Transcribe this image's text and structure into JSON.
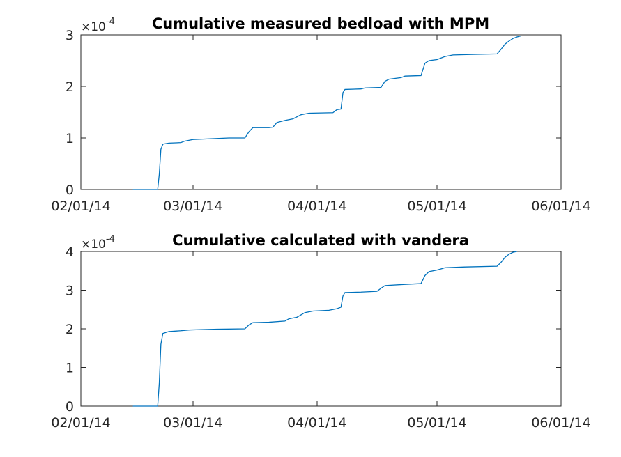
{
  "chart_data": [
    {
      "type": "line",
      "title": "Cumulative measured bedload with MPM",
      "exponent_label": "×10",
      "exponent_power": "-4",
      "xlim": [
        "02/01/14",
        "06/01/14"
      ],
      "ylim": [
        0,
        3
      ],
      "x_ticks": [
        "02/01/14",
        "03/01/14",
        "04/01/14",
        "05/01/14",
        "06/01/14"
      ],
      "y_ticks": [
        "0",
        "1",
        "2",
        "3"
      ],
      "grid": false,
      "series": [
        {
          "color": "#0072BD",
          "points": [
            [
              "2014-02-14",
              0
            ],
            [
              "2014-02-14",
              0
            ],
            [
              "2014-02-20.2",
              0
            ],
            [
              "2014-02-20.6",
              0.3
            ],
            [
              "2014-02-21.0",
              0.78
            ],
            [
              "2014-02-21.5",
              0.88
            ],
            [
              "2014-02-23",
              0.9
            ],
            [
              "2014-02-26",
              0.91
            ],
            [
              "2014-02-27",
              0.94
            ],
            [
              "2014-03-01",
              0.97
            ],
            [
              "2014-03-04",
              0.98
            ],
            [
              "2014-03-07",
              0.99
            ],
            [
              "2014-03-10",
              1.0
            ],
            [
              "2014-03-14",
              1.0
            ],
            [
              "2014-03-15",
              1.12
            ],
            [
              "2014-03-16",
              1.2
            ],
            [
              "2014-03-20",
              1.2
            ],
            [
              "2014-03-21",
              1.21
            ],
            [
              "2014-03-22",
              1.3
            ],
            [
              "2014-03-24",
              1.34
            ],
            [
              "2014-03-26",
              1.37
            ],
            [
              "2014-03-28",
              1.45
            ],
            [
              "2014-03-30",
              1.48
            ],
            [
              "2014-04-05",
              1.49
            ],
            [
              "2014-04-06",
              1.55
            ],
            [
              "2014-04-07",
              1.56
            ],
            [
              "2014-04-07.5",
              1.88
            ],
            [
              "2014-04-08",
              1.94
            ],
            [
              "2014-04-12",
              1.95
            ],
            [
              "2014-04-13",
              1.97
            ],
            [
              "2014-04-17",
              1.98
            ],
            [
              "2014-04-18",
              2.1
            ],
            [
              "2014-04-19",
              2.14
            ],
            [
              "2014-04-22",
              2.17
            ],
            [
              "2014-04-23",
              2.2
            ],
            [
              "2014-04-27",
              2.21
            ],
            [
              "2014-04-28",
              2.45
            ],
            [
              "2014-04-29",
              2.5
            ],
            [
              "2014-05-01",
              2.52
            ],
            [
              "2014-05-03",
              2.58
            ],
            [
              "2014-05-05",
              2.61
            ],
            [
              "2014-05-10",
              2.62
            ],
            [
              "2014-05-16",
              2.63
            ],
            [
              "2014-05-17",
              2.72
            ],
            [
              "2014-05-18",
              2.82
            ],
            [
              "2014-05-19",
              2.88
            ],
            [
              "2014-05-20",
              2.93
            ],
            [
              "2014-05-21",
              2.96
            ],
            [
              "2014-05-22",
              2.98
            ]
          ]
        }
      ]
    },
    {
      "type": "line",
      "title": "Cumulative calculated with vandera",
      "exponent_label": "×10",
      "exponent_power": "-4",
      "xlim": [
        "02/01/14",
        "06/01/14"
      ],
      "ylim": [
        0,
        4
      ],
      "x_ticks": [
        "02/01/14",
        "03/01/14",
        "04/01/14",
        "05/01/14",
        "06/01/14"
      ],
      "y_ticks": [
        "0",
        "1",
        "2",
        "3",
        "4"
      ],
      "grid": false,
      "series": [
        {
          "color": "#0072BD",
          "points": [
            [
              "2014-02-14",
              0
            ],
            [
              "2014-02-14",
              0
            ],
            [
              "2014-02-20.2",
              0
            ],
            [
              "2014-02-20.6",
              0.6
            ],
            [
              "2014-02-21.0",
              1.6
            ],
            [
              "2014-02-21.5",
              1.88
            ],
            [
              "2014-02-23",
              1.93
            ],
            [
              "2014-02-26",
              1.95
            ],
            [
              "2014-02-28",
              1.97
            ],
            [
              "2014-03-03",
              1.98
            ],
            [
              "2014-03-07",
              1.99
            ],
            [
              "2014-03-14",
              2.0
            ],
            [
              "2014-03-15",
              2.1
            ],
            [
              "2014-03-16",
              2.16
            ],
            [
              "2014-03-20",
              2.17
            ],
            [
              "2014-03-24",
              2.2
            ],
            [
              "2014-03-25",
              2.26
            ],
            [
              "2014-03-27",
              2.3
            ],
            [
              "2014-03-29",
              2.42
            ],
            [
              "2014-03-31",
              2.46
            ],
            [
              "2014-04-04",
              2.48
            ],
            [
              "2014-04-06",
              2.52
            ],
            [
              "2014-04-07",
              2.56
            ],
            [
              "2014-04-07.5",
              2.85
            ],
            [
              "2014-04-08",
              2.94
            ],
            [
              "2014-04-12",
              2.95
            ],
            [
              "2014-04-16",
              2.97
            ],
            [
              "2014-04-17",
              3.05
            ],
            [
              "2014-04-18",
              3.12
            ],
            [
              "2014-04-23",
              3.15
            ],
            [
              "2014-04-27",
              3.17
            ],
            [
              "2014-04-28",
              3.38
            ],
            [
              "2014-04-29",
              3.48
            ],
            [
              "2014-05-01",
              3.52
            ],
            [
              "2014-05-03",
              3.58
            ],
            [
              "2014-05-08",
              3.6
            ],
            [
              "2014-05-16",
              3.62
            ],
            [
              "2014-05-17",
              3.72
            ],
            [
              "2014-05-18",
              3.85
            ],
            [
              "2014-05-19",
              3.93
            ],
            [
              "2014-05-20",
              3.98
            ],
            [
              "2014-05-21",
              4.0
            ]
          ]
        }
      ]
    }
  ]
}
